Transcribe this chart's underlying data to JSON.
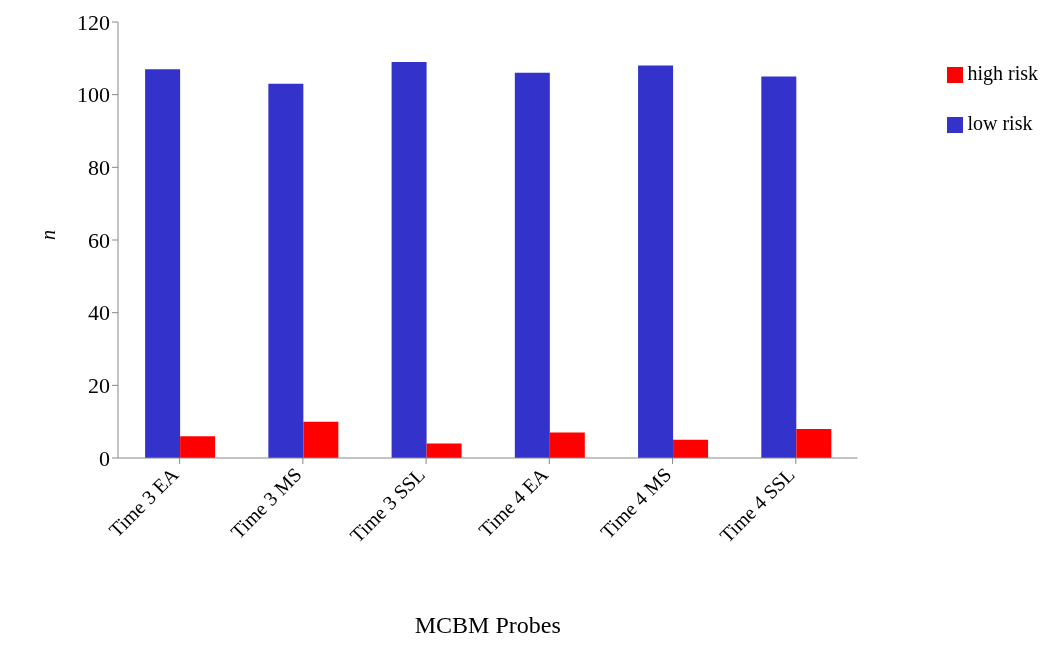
{
  "chart_data": {
    "type": "bar",
    "xlabel": "MCBM Probes",
    "ylabel": "n",
    "categories": [
      "Time 3 EA",
      "Time 3 MS",
      "Time 3 SSL",
      "Time 4 EA",
      "Time 4 MS",
      "Time 4 SSL"
    ],
    "series": [
      {
        "name": "low risk",
        "color": "#3333cc",
        "values": [
          107,
          103,
          109,
          106,
          108,
          105
        ]
      },
      {
        "name": "high risk",
        "color": "#ff0000",
        "values": [
          6,
          10,
          4,
          7,
          5,
          8
        ]
      }
    ],
    "ylim": [
      0,
      120
    ],
    "yticks": [
      0,
      20,
      40,
      60,
      80,
      100,
      120
    ],
    "grid": false,
    "legend": "top right"
  }
}
